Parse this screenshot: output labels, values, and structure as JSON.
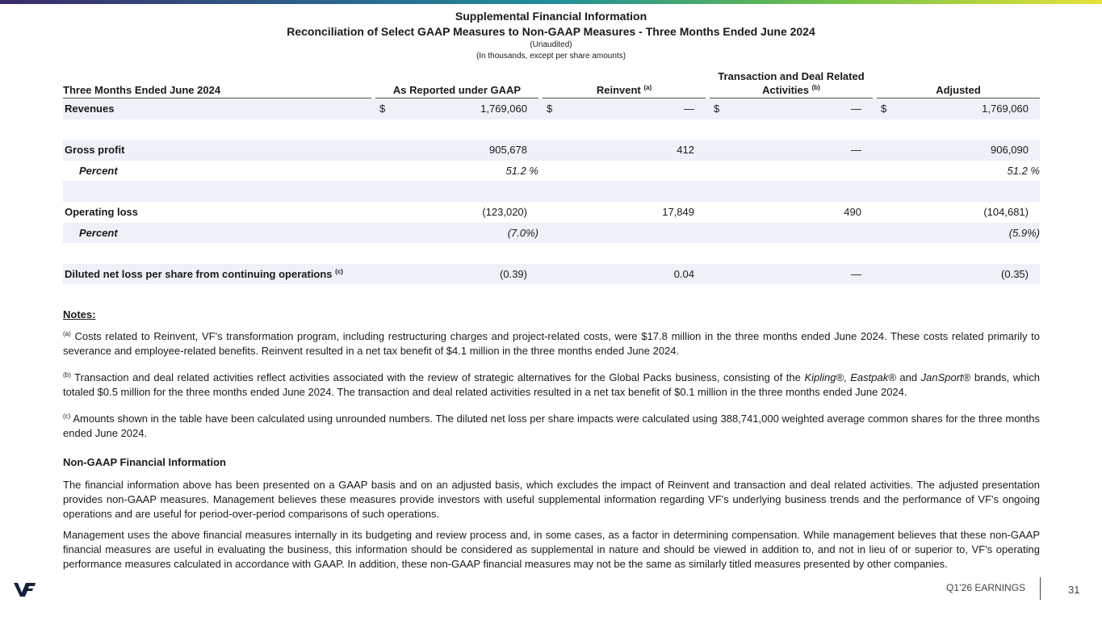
{
  "header": {
    "title": "Supplemental Financial Information",
    "subtitle": "Reconciliation of Select GAAP Measures to Non-GAAP Measures - Three Months Ended June 2024",
    "unaudited": "(Unaudited)",
    "units": "(In thousands, except per share amounts)"
  },
  "table": {
    "columns": [
      {
        "label": "Three Months Ended June 2024"
      },
      {
        "label": "As Reported under GAAP"
      },
      {
        "label": "Reinvent",
        "sup": "(a)"
      },
      {
        "label": "Transaction and Deal Related Activities",
        "sup": "(b)"
      },
      {
        "label": "Adjusted"
      }
    ],
    "rows": [
      {
        "label": "Revenues",
        "style": "bold",
        "shaded": true,
        "space_after": true,
        "cells": [
          {
            "currency": "$",
            "value": "1,769,060"
          },
          {
            "currency": "$",
            "value": "—"
          },
          {
            "currency": "$",
            "value": "—"
          },
          {
            "currency": "$",
            "value": "1,769,060"
          }
        ]
      },
      {
        "label": "Gross profit",
        "style": "bold",
        "shaded": true,
        "cells": [
          {
            "value": "905,678"
          },
          {
            "value": "412"
          },
          {
            "value": "—"
          },
          {
            "value": "906,090"
          }
        ]
      },
      {
        "label": "Percent",
        "style": "italic",
        "percent": true,
        "shaded": false,
        "space_after": true,
        "cells": [
          {
            "value": "51.2 %"
          },
          null,
          null,
          {
            "value": "51.2 %"
          }
        ]
      },
      {
        "label": "Operating loss",
        "style": "bold",
        "shaded": false,
        "cells": [
          {
            "value": "(123,020)"
          },
          {
            "value": "17,849"
          },
          {
            "value": "490"
          },
          {
            "value": "(104,681)"
          }
        ]
      },
      {
        "label": "Percent",
        "style": "italic",
        "percent": true,
        "shaded": true,
        "space_after": true,
        "cells": [
          {
            "value": "(7.0%)"
          },
          null,
          null,
          {
            "value": "(5.9%)"
          }
        ]
      },
      {
        "label": "Diluted net loss per share from continuing operations",
        "sup": "(c)",
        "style": "bold",
        "shaded": true,
        "cells": [
          {
            "value": "(0.39)"
          },
          {
            "value": "0.04"
          },
          {
            "value": "—"
          },
          {
            "value": "(0.35)"
          }
        ]
      }
    ]
  },
  "notes": {
    "heading": "Notes:",
    "items": [
      {
        "sup": "(a)",
        "parts": [
          {
            "text": " Costs related to Reinvent, VF's transformation program, including restructuring charges and project-related costs, were $17.8 million in the three months ended June 2024. These costs related primarily to severance and employee-related benefits. Reinvent resulted in a net tax benefit of $4.1 million in the three months ended June 2024."
          }
        ]
      },
      {
        "sup": "(b)",
        "parts": [
          {
            "text": " Transaction and deal related activities reflect activities associated with the review of strategic alternatives for the Global Packs business, consisting of the "
          },
          {
            "text": "Kipling®",
            "italic": true
          },
          {
            "text": ", "
          },
          {
            "text": "Eastpak®",
            "italic": true
          },
          {
            "text": " and "
          },
          {
            "text": "JanSport®",
            "italic": true
          },
          {
            "text": " brands, which totaled $0.5 million for the three months ended June 2024. The transaction and deal related activities resulted in a net tax benefit of $0.1 million in the three months ended June 2024."
          }
        ]
      },
      {
        "sup": "(c)",
        "parts": [
          {
            "text": " Amounts shown in the table have been calculated using unrounded numbers. The diluted net loss per share impacts were calculated using 388,741,000 weighted average common shares for the three months ended June 2024."
          }
        ]
      }
    ]
  },
  "non_gaap": {
    "heading": "Non-GAAP Financial Information",
    "paragraphs": [
      "The financial information above has been presented on a GAAP basis and on an adjusted basis, which excludes the impact of Reinvent and transaction and deal related activities. The adjusted presentation provides non-GAAP measures. Management believes these measures provide investors with useful supplemental information regarding VF's underlying business trends and the performance of VF's ongoing operations and are useful for period-over-period comparisons of such operations.",
      "Management uses the above financial measures internally in its budgeting and review process and, in some cases, as a factor in determining compensation. While management believes that these non-GAAP financial measures are useful in evaluating the business, this information should be considered as supplemental in nature and should be viewed in addition to, and not in lieu of or superior to, VF's operating performance measures calculated in accordance with GAAP. In addition, these non-GAAP financial measures may not be the same as similarly titled measures presented by other companies."
    ]
  },
  "footer": {
    "label": "Q1’26 EARNINGS",
    "page": "31"
  }
}
